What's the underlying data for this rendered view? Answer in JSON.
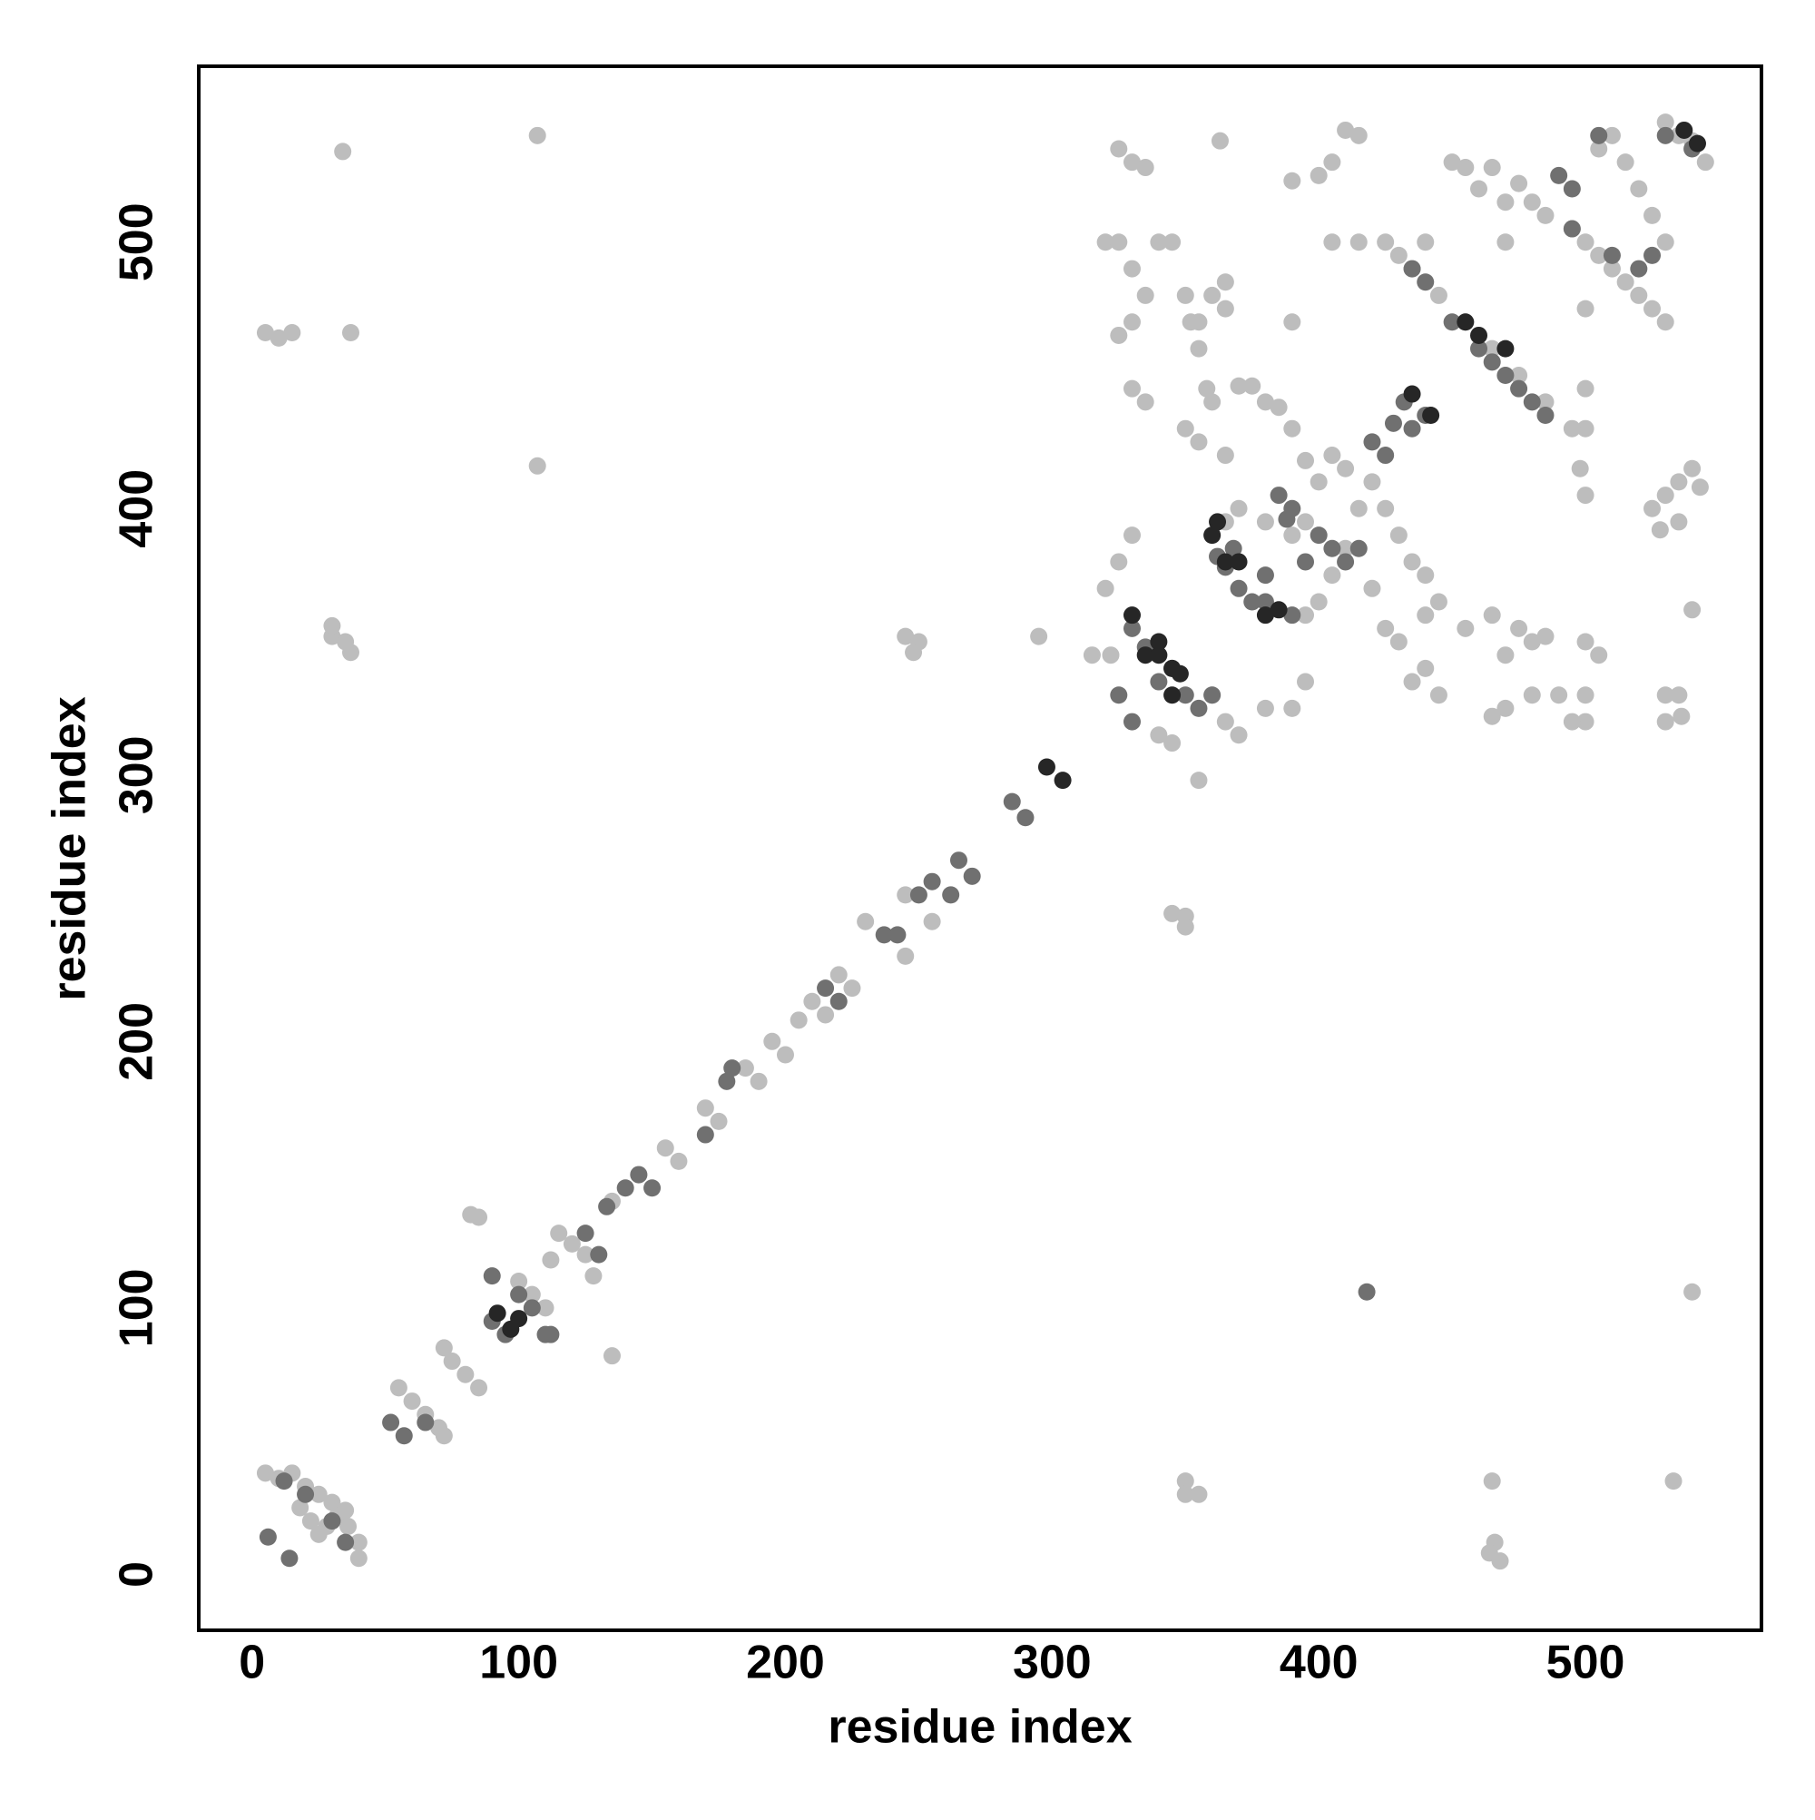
{
  "chart_data": {
    "type": "scatter",
    "xlabel": "residue index",
    "ylabel": "residue index",
    "xlim": [
      -20,
      566
    ],
    "ylim": [
      -21,
      566
    ],
    "xticks": [
      0,
      100,
      200,
      300,
      400,
      500
    ],
    "yticks": [
      0,
      100,
      200,
      300,
      400,
      500
    ],
    "grid": false,
    "series": [
      {
        "color": "#bdbdbd",
        "x": [
          5,
          10,
          15,
          20,
          25,
          18,
          22,
          28,
          32,
          36,
          40,
          40,
          25,
          30,
          35,
          5,
          10,
          15,
          37,
          34,
          107,
          107,
          30,
          35,
          37,
          30,
          55,
          60,
          65,
          70,
          72,
          75,
          80,
          85,
          72,
          82,
          85,
          100,
          105,
          110,
          112,
          115,
          120,
          125,
          128,
          135,
          135,
          145,
          155,
          160,
          170,
          175,
          185,
          190,
          195,
          200,
          205,
          210,
          215,
          220,
          225,
          230,
          245,
          245,
          255,
          245,
          250,
          248,
          295,
          350,
          350,
          345,
          350,
          355,
          350,
          465,
          466,
          464,
          468,
          540,
          533,
          320,
          315,
          322,
          330,
          325,
          320,
          325,
          330,
          325,
          335,
          330,
          335,
          325,
          330,
          330,
          335,
          340,
          345,
          350,
          352,
          355,
          358,
          360,
          350,
          355,
          365,
          370,
          375,
          380,
          385,
          390,
          395,
          363,
          410,
          415,
          405,
          400,
          390,
          405,
          415,
          425,
          440,
          455,
          465,
          475,
          480,
          485,
          495,
          500,
          505,
          510,
          515,
          520,
          525,
          530,
          470,
          500,
          500,
          500,
          498,
          500,
          525,
          530,
          535,
          540,
          543,
          535,
          528,
          540,
          536,
          530,
          530,
          535,
          505,
          500,
          500,
          500,
          495,
          490,
          480,
          470,
          465,
          475,
          480,
          485,
          470,
          465,
          455,
          445,
          440,
          435,
          430,
          440,
          420,
          425,
          430,
          440,
          445,
          435,
          395,
          390,
          380,
          370,
          365,
          360,
          355,
          345,
          340,
          395,
          400,
          405,
          410,
          415,
          420,
          410,
          405,
          400,
          425,
          395,
          390,
          380,
          370,
          365,
          360,
          450,
          460,
          470,
          430,
          435,
          445,
          455,
          465,
          475,
          485,
          495,
          365,
          360,
          355,
          365,
          535,
          540,
          530,
          545,
          520,
          525,
          530,
          515,
          505,
          510,
          390
        ],
        "values": [
          38,
          36,
          38,
          33,
          30,
          25,
          20,
          18,
          22,
          18,
          12,
          6,
          15,
          27,
          24,
          466,
          464,
          466,
          466,
          534,
          540,
          416,
          352,
          350,
          346,
          356,
          70,
          65,
          60,
          55,
          52,
          80,
          75,
          70,
          85,
          135,
          134,
          110,
          105,
          100,
          118,
          128,
          124,
          120,
          112,
          82,
          140,
          150,
          160,
          155,
          175,
          170,
          190,
          185,
          200,
          195,
          208,
          215,
          210,
          225,
          220,
          245,
          232,
          255,
          245,
          352,
          350,
          346,
          352,
          247,
          243,
          248,
          35,
          30,
          30,
          35,
          12,
          8,
          5,
          106,
          35,
          370,
          345,
          345,
          390,
          380,
          500,
          500,
          530,
          535,
          528,
          490,
          480,
          465,
          470,
          445,
          440,
          500,
          500,
          480,
          470,
          460,
          445,
          440,
          430,
          425,
          420,
          446,
          446,
          440,
          438,
          430,
          418,
          538,
          542,
          540,
          530,
          525,
          523,
          500,
          500,
          500,
          500,
          528,
          528,
          522,
          515,
          510,
          505,
          500,
          495,
          490,
          485,
          480,
          475,
          470,
          500,
          475,
          445,
          430,
          415,
          405,
          400,
          405,
          410,
          415,
          408,
          395,
          392,
          362,
          322,
          320,
          330,
          330,
          345,
          350,
          330,
          320,
          320,
          330,
          330,
          345,
          360,
          355,
          350,
          352,
          325,
          322,
          355,
          365,
          375,
          380,
          390,
          360,
          370,
          355,
          350,
          340,
          330,
          335,
          335,
          325,
          325,
          315,
          320,
          330,
          298,
          312,
          315,
          360,
          365,
          375,
          385,
          400,
          410,
          415,
          420,
          410,
          400,
          395,
          390,
          395,
          400,
          395,
          390,
          530,
          520,
          515,
          495,
          490,
          480,
          470,
          460,
          450,
          440,
          430,
          475,
          480,
          470,
          485,
          540,
          538,
          545,
          530,
          520,
          510,
          500,
          530,
          535,
          540,
          470
        ]
      },
      {
        "color": "#707070",
        "x": [
          6,
          14,
          12,
          20,
          35,
          30,
          52,
          57,
          65,
          90,
          90,
          95,
          100,
          110,
          105,
          112,
          125,
          130,
          133,
          140,
          150,
          145,
          170,
          180,
          178,
          215,
          220,
          237,
          242,
          250,
          255,
          262,
          265,
          270,
          285,
          290,
          330,
          325,
          330,
          335,
          340,
          345,
          350,
          355,
          360,
          365,
          370,
          375,
          380,
          385,
          388,
          390,
          395,
          400,
          405,
          410,
          415,
          420,
          425,
          428,
          435,
          432,
          440,
          435,
          440,
          450,
          460,
          465,
          470,
          475,
          480,
          485,
          495,
          510,
          520,
          525,
          505,
          490,
          495,
          530,
          540,
          418,
          390,
          380,
          368,
          362
        ],
        "values": [
          14,
          6,
          35,
          30,
          12,
          20,
          57,
          52,
          57,
          112,
          95,
          90,
          105,
          90,
          100,
          90,
          128,
          120,
          138,
          145,
          145,
          150,
          165,
          190,
          185,
          220,
          215,
          240,
          240,
          255,
          260,
          255,
          268,
          262,
          290,
          284,
          320,
          330,
          355,
          348,
          335,
          340,
          330,
          325,
          330,
          378,
          370,
          365,
          375,
          405,
          396,
          400,
          380,
          390,
          385,
          380,
          385,
          425,
          420,
          432,
          430,
          440,
          435,
          490,
          485,
          470,
          460,
          455,
          450,
          445,
          440,
          435,
          505,
          495,
          490,
          495,
          540,
          525,
          520,
          540,
          535,
          106,
          360,
          365,
          385,
          382
        ]
      },
      {
        "color": "#262626",
        "x": [
          97,
          100,
          92,
          298,
          304,
          340,
          345,
          348,
          335,
          340,
          330,
          345,
          365,
          370,
          380,
          385,
          360,
          362,
          455,
          460,
          470,
          442,
          435,
          537,
          542
        ],
        "values": [
          92,
          96,
          98,
          303,
          298,
          350,
          340,
          338,
          345,
          345,
          360,
          330,
          380,
          380,
          360,
          362,
          390,
          395,
          470,
          465,
          460,
          435,
          443,
          542,
          537
        ]
      }
    ]
  }
}
